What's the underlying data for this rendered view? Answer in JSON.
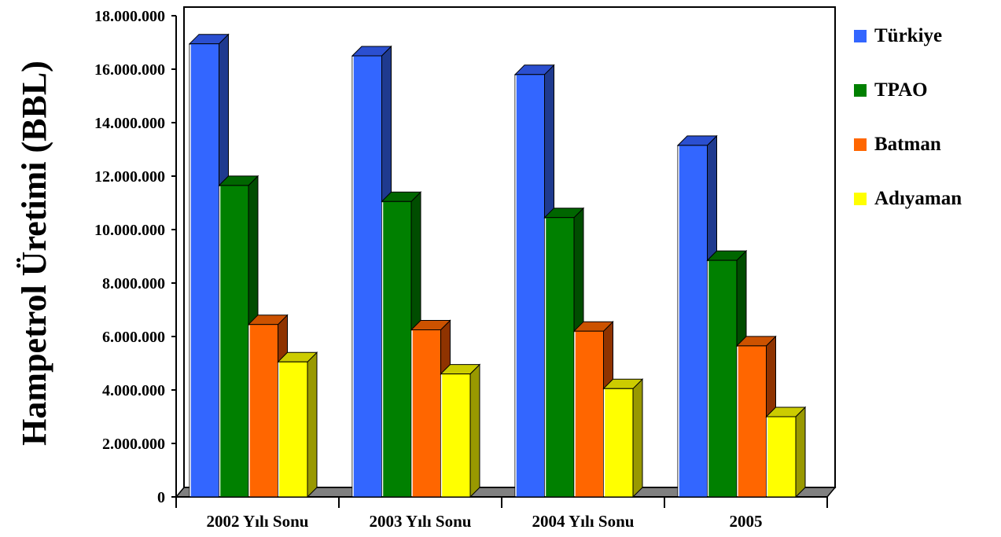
{
  "chart_data": {
    "type": "bar",
    "ylabel": "Hampetrol Üretimi (BBL)",
    "xlabel": "",
    "ylim": [
      0,
      18000000
    ],
    "yticks": [
      0,
      2000000,
      4000000,
      6000000,
      8000000,
      10000000,
      12000000,
      14000000,
      16000000,
      18000000
    ],
    "ytick_labels": [
      "0",
      "2.000.000",
      "4.000.000",
      "6.000.000",
      "8.000.000",
      "10.000.000",
      "12.000.000",
      "14.000.000",
      "16.000.000",
      "18.000.000"
    ],
    "categories": [
      "2002 Yılı Sonu",
      "2003 Yılı Sonu",
      "2004 Yılı Sonu",
      "2005"
    ],
    "series": [
      {
        "name": "Türkiye",
        "values": [
          16950000,
          16500000,
          15800000,
          13150000
        ],
        "color": "#3366ff",
        "side_color": "#1f3a8f",
        "top_color": "#2b4fd0"
      },
      {
        "name": "TPAO",
        "values": [
          11650000,
          11050000,
          10450000,
          8850000
        ],
        "color": "#008000",
        "side_color": "#004d00",
        "top_color": "#006600"
      },
      {
        "name": "Batman",
        "values": [
          6450000,
          6250000,
          6200000,
          5650000
        ],
        "color": "#ff6600",
        "side_color": "#8f3300",
        "top_color": "#cc5200"
      },
      {
        "name": "Adıyaman",
        "values": [
          5050000,
          4600000,
          4050000,
          3000000
        ],
        "color": "#ffff00",
        "side_color": "#999900",
        "top_color": "#cccc00"
      }
    ],
    "legend_position": "right",
    "grid": false
  }
}
